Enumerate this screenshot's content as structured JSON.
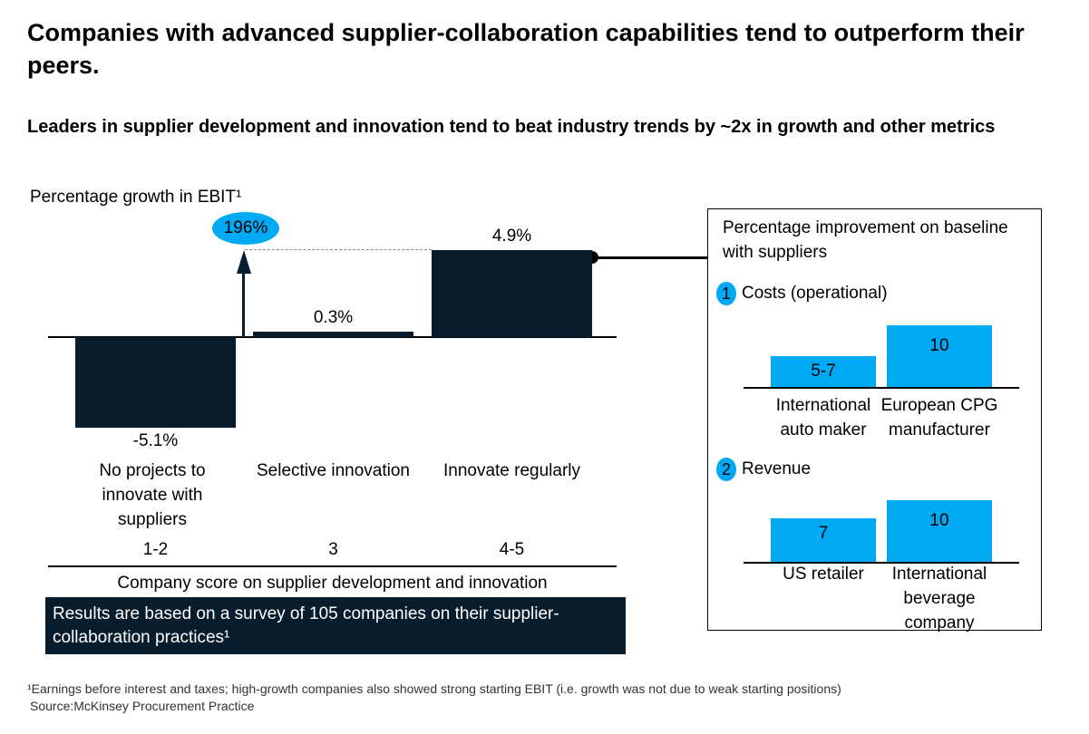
{
  "title": "Companies with advanced supplier-collaboration capabilities tend to outperform their peers.",
  "subtitle": "Leaders in supplier development and innovation tend to beat industry trends by ~2x in growth and other metrics",
  "chart_data": [
    {
      "type": "bar",
      "ylabel": "Percentage growth in EBIT¹",
      "xlabel": "Company score on supplier development and innovation",
      "categories": [
        "1-2",
        "3",
        "4-5"
      ],
      "category_descriptions": [
        "No projects to innovate with suppliers",
        "Selective innovation",
        "Innovate regularly"
      ],
      "values": [
        -5.1,
        0.3,
        4.9
      ],
      "data_labels": [
        "-5.1%",
        "0.3%",
        "4.9%"
      ],
      "annotation": "196%",
      "color": "#071d2e",
      "highlight_color": "#00a9f4"
    },
    {
      "type": "bar",
      "panel_title": "Percentage improvement on baseline with suppliers",
      "number": "1",
      "title": "Costs (operational)",
      "categories": [
        "International auto maker",
        "European CPG manufacturer"
      ],
      "values": [
        5,
        10
      ],
      "data_labels": [
        "5-7",
        "10"
      ],
      "color": "#00a9f4"
    },
    {
      "type": "bar",
      "number": "2",
      "title": "Revenue",
      "categories": [
        "US retailer",
        "International beverage company"
      ],
      "values": [
        7,
        10
      ],
      "data_labels": [
        "7",
        "10"
      ],
      "color": "#00a9f4"
    }
  ],
  "note": "Results are based on a survey of 105 companies on their supplier-collaboration practices¹",
  "footnote": "¹Earnings before interest and taxes; high-growth companies also showed strong starting EBIT (i.e. growth was not due to weak starting positions)",
  "source": "Source:McKinsey Procurement Practice"
}
